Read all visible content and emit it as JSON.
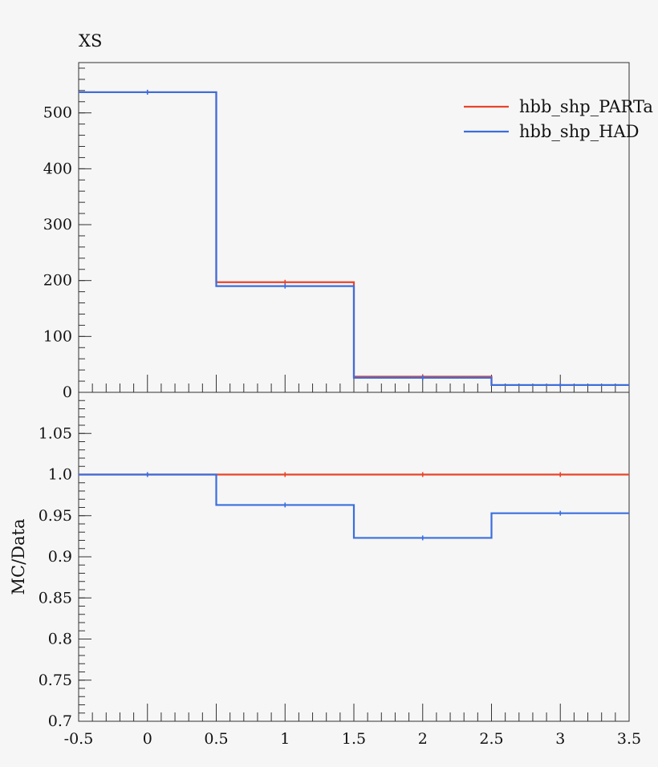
{
  "chart_data": {
    "type": "line",
    "title": "XS",
    "xlabel": "",
    "ylabel_ratio": "MC/Data",
    "xlim": [
      -0.5,
      3.5
    ],
    "x_ticks": [
      -0.5,
      0,
      0.5,
      1,
      1.5,
      2,
      2.5,
      3,
      3.5
    ],
    "x_tick_labels": [
      "-0.5",
      "0",
      "0.5",
      "1",
      "1.5",
      "2",
      "2.5",
      "3",
      "3.5"
    ],
    "bin_edges": [
      -0.5,
      0.5,
      1.5,
      2.5,
      3.5
    ],
    "top": {
      "ylim": [
        0,
        590
      ],
      "y_ticks": [
        0,
        100,
        200,
        300,
        400,
        500
      ],
      "y_tick_labels": [
        "0",
        "100",
        "200",
        "300",
        "400",
        "500"
      ],
      "series": [
        {
          "name": "hbb_shp_PARTa",
          "color": "#e8442a",
          "values": [
            537,
            197,
            28,
            13
          ]
        },
        {
          "name": "hbb_shp_HAD",
          "color": "#3a6ee0",
          "values": [
            537,
            190,
            26,
            13
          ]
        }
      ]
    },
    "ratio": {
      "ylim": [
        0.7,
        1.1
      ],
      "y_ticks": [
        0.7,
        0.75,
        0.8,
        0.85,
        0.9,
        0.95,
        1.0,
        1.05
      ],
      "y_tick_labels": [
        "0.7",
        "0.75",
        "0.8",
        "0.85",
        "0.9",
        "0.95",
        "1.0",
        "1.05"
      ],
      "series": [
        {
          "name": "hbb_shp_PARTa",
          "color": "#e8442a",
          "values": [
            1.0,
            1.0,
            1.0,
            1.0
          ]
        },
        {
          "name": "hbb_shp_HAD",
          "color": "#3a6ee0",
          "values": [
            1.0,
            0.963,
            0.923,
            0.953
          ]
        }
      ]
    },
    "legend": {
      "placement": "top-right",
      "entries": [
        "hbb_shp_PARTa",
        "hbb_shp_HAD"
      ]
    }
  }
}
